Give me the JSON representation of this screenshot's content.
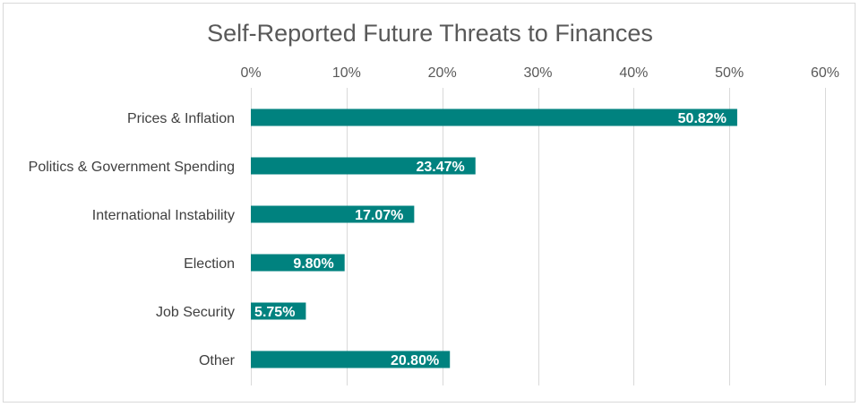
{
  "chart_data": {
    "type": "bar",
    "orientation": "horizontal",
    "title": "Self-Reported Future Threats to Finances",
    "categories": [
      "Prices & Inflation",
      "Politics & Government Spending",
      "International Instability",
      "Election",
      "Job Security",
      "Other"
    ],
    "values": [
      50.82,
      23.47,
      17.07,
      9.8,
      5.75,
      20.8
    ],
    "data_labels": [
      "50.82%",
      "23.47%",
      "17.07%",
      "9.80%",
      "5.75%",
      "20.80%"
    ],
    "xlim": [
      0,
      60
    ],
    "x_ticks": [
      0,
      10,
      20,
      30,
      40,
      50,
      60
    ],
    "x_tick_labels": [
      "0%",
      "10%",
      "20%",
      "30%",
      "40%",
      "50%",
      "60%"
    ],
    "x_axis_position": "top",
    "grid": true,
    "bar_color": "#00827F",
    "xlabel": "",
    "ylabel": ""
  }
}
